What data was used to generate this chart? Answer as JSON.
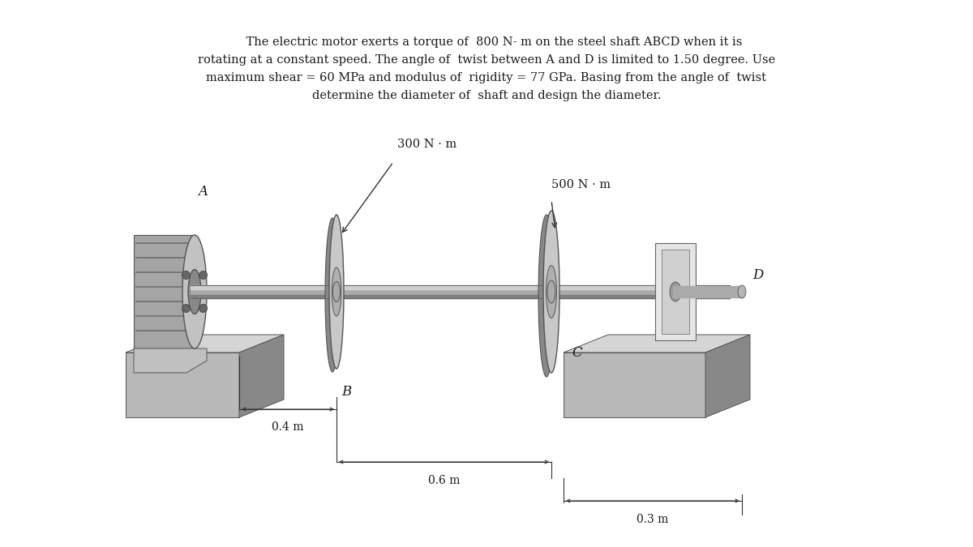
{
  "background_color": "#ffffff",
  "text_paragraph_line1": "    The electric motor exerts a torque of  800 N- m on the steel shaft ABCD when it is",
  "text_paragraph_line2": "rotating at a constant speed. The angle of  twist between A and D is limited to 1.50 degree. Use",
  "text_paragraph_line3": "maximum shear = 60 MPa and modulus of  rigidity = 77 GPa. Basing from the angle of  twist",
  "text_paragraph_line4": "determine the diameter of  shaft and design the diameter.",
  "label_300": "300 N · m",
  "label_500": "500 N · m",
  "label_04": "0.4 m",
  "label_06": "0.6 m",
  "label_03": "0.3 m",
  "label_A": "A",
  "label_B": "B",
  "label_C": "C",
  "label_D": "D",
  "text_color": "#1a1a1a",
  "shaft_color": "#aaaaaa",
  "shaft_highlight": "#d8d8d8",
  "shaft_shadow": "#777777",
  "disc_face": "#c8c8c8",
  "disc_back": "#888888",
  "disc_ring": "#aaaaaa",
  "block_face": "#b8b8b8",
  "block_top": "#d5d5d5",
  "block_side": "#888888",
  "motor_body": "#a5a5a5",
  "motor_front": "#c2c2c2",
  "motor_hub": "#888888",
  "clamp_color": "#e2e2e2",
  "edge_color": "#555555"
}
